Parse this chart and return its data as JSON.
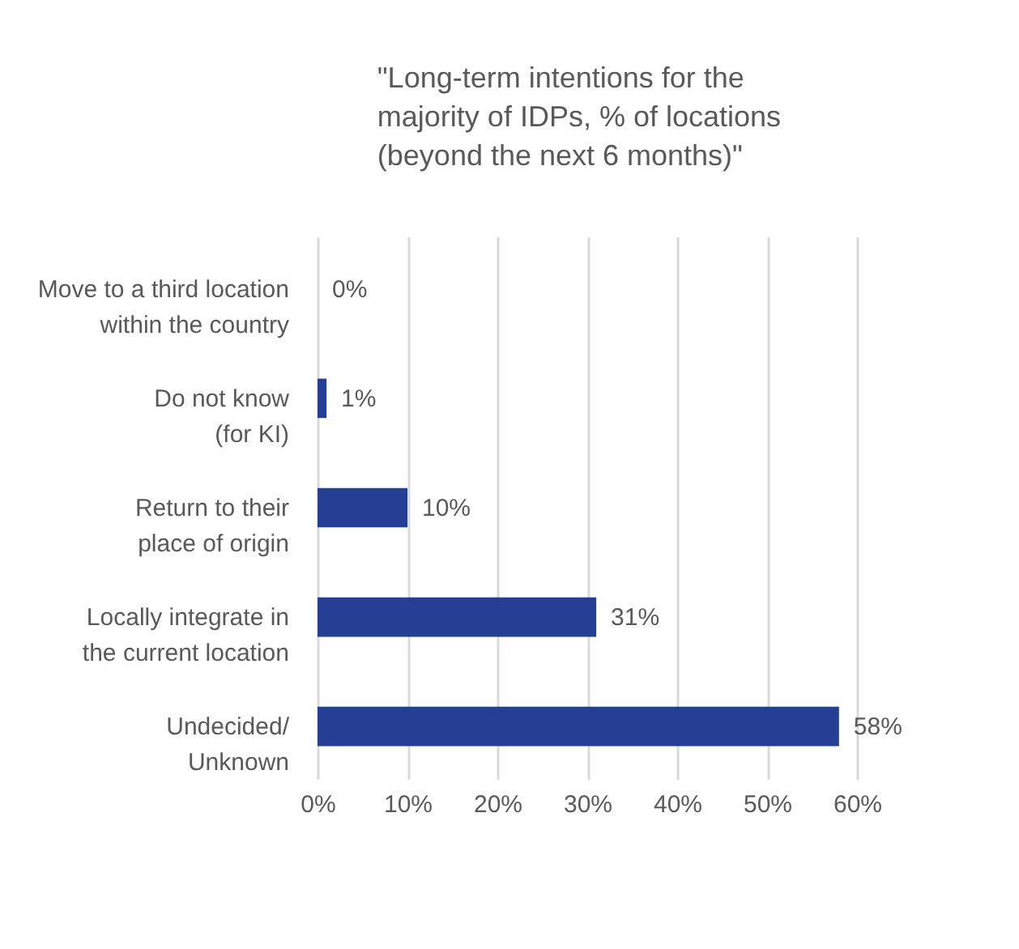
{
  "chart_data": {
    "type": "bar",
    "orientation": "horizontal",
    "title": "\"Long-term intentions for the\nmajority of IDPs, % of locations\n(beyond the next 6 months)\"",
    "categories": [
      "Move to a third location\nwithin the country",
      "Do not know\n(for KI)",
      "Return to their\nplace of origin",
      "Locally integrate in\nthe current location",
      "Undecided/\nUnknown"
    ],
    "values": [
      0,
      1,
      10,
      31,
      58
    ],
    "value_labels": [
      "0%",
      "1%",
      "10%",
      "31%",
      "58%"
    ],
    "color": "#243f93",
    "xlim": [
      0,
      60
    ],
    "xticks": [
      {
        "value": 0,
        "label": "0%"
      },
      {
        "value": 10,
        "label": "10%"
      },
      {
        "value": 20,
        "label": "20%"
      },
      {
        "value": 30,
        "label": "30%"
      },
      {
        "value": 40,
        "label": "40%"
      },
      {
        "value": 50,
        "label": "50%"
      },
      {
        "value": 60,
        "label": "60%"
      }
    ],
    "grid": "x"
  }
}
